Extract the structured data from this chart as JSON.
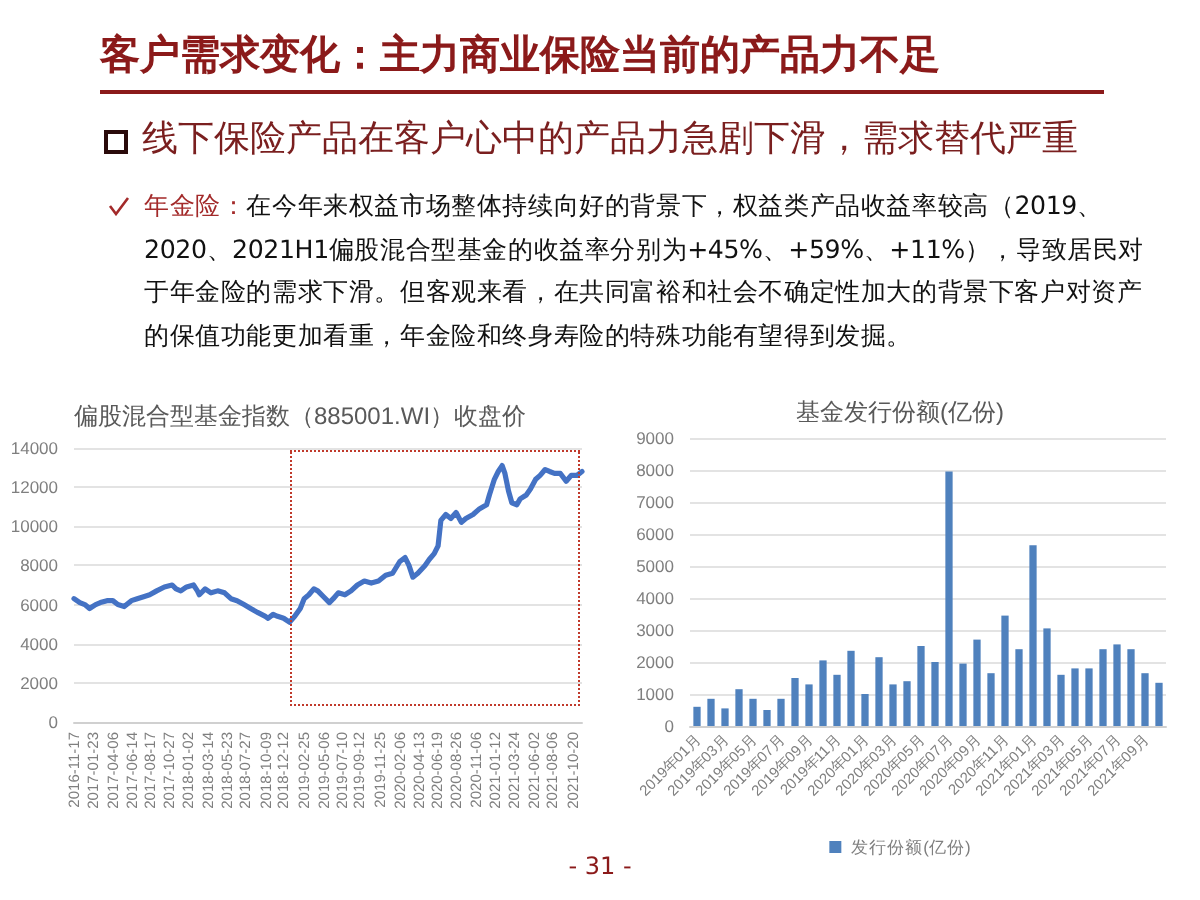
{
  "chart_data": [
    {
      "type": "other",
      "title": "客户需求变化：主力商业保险当前的产品力不足",
      "subtitle": "线下保险产品在客户心中的产品力急剧下滑，需求替代严重",
      "annotations": [
        "年金险：",
        "在今年来权益市场整体持续向好的背景下，权益类产品收益率较高（2019、2020、2021H1偏股混合型基金的收益率分别为+45%、+59%、+11%），导致居民对于年金险的需求下滑。但客观来看，在共同富裕和社会不确定性加大的背景下客户对资产的保值功能更加看重，年金险和终身寿险的特殊功能有望得到发掘。",
        "- 31 -"
      ]
    },
    {
      "type": "line",
      "title": "偏股混合型基金指数（885001.WI）收盘价",
      "x": [
        "2016-11-17",
        "2016-12-08",
        "2016-12-26",
        "2017-01-12",
        "2017-02-03",
        "2017-02-20",
        "2017-03-16",
        "2017-04-06",
        "2017-04-24",
        "2017-05-17",
        "2017-06-12",
        "2017-07-03",
        "2017-07-26",
        "2017-08-17",
        "2017-09-11",
        "2017-10-09",
        "2017-11-06",
        "2017-11-20",
        "2017-12-07",
        "2017-12-28",
        "2018-01-22",
        "2018-02-05",
        "2018-02-12",
        "2018-03-05",
        "2018-03-26",
        "2018-04-19",
        "2018-05-14",
        "2018-06-06",
        "2018-06-28",
        "2018-07-23",
        "2018-08-16",
        "2018-09-10",
        "2018-10-08",
        "2018-10-18",
        "2018-11-05",
        "2018-11-21",
        "2018-12-13",
        "2019-01-03",
        "2019-01-22",
        "2019-02-11",
        "2019-02-25",
        "2019-03-14",
        "2019-04-01",
        "2019-04-15",
        "2019-05-06",
        "2019-05-27",
        "2019-06-10",
        "2019-06-28",
        "2019-07-22",
        "2019-08-13",
        "2019-09-05",
        "2019-09-30",
        "2019-10-25",
        "2019-11-20",
        "2019-12-16",
        "2020-01-10",
        "2020-02-05",
        "2020-02-24",
        "2020-03-09",
        "2020-03-23",
        "2020-04-10",
        "2020-05-06",
        "2020-05-21",
        "2020-06-08",
        "2020-06-22",
        "2020-07-02",
        "2020-07-20",
        "2020-08-07",
        "2020-08-26",
        "2020-09-14",
        "2020-09-30",
        "2020-10-26",
        "2020-11-19",
        "2020-12-14",
        "2020-12-24",
        "2021-01-11",
        "2021-01-25",
        "2021-02-08",
        "2021-02-18",
        "2021-03-03",
        "2021-03-15",
        "2021-04-02",
        "2021-04-14",
        "2021-05-06",
        "2021-05-21",
        "2021-06-09",
        "2021-06-25",
        "2021-07-13",
        "2021-07-29",
        "2021-08-16",
        "2021-09-06",
        "2021-09-27",
        "2021-10-15",
        "2021-11-05",
        "2021-11-23"
      ],
      "series": [
        {
          "color": "#4472c4",
          "values": [
            6300,
            6100,
            6000,
            5800,
            6000,
            6100,
            6200,
            6200,
            6000,
            5900,
            6200,
            6300,
            6400,
            6500,
            6700,
            6900,
            7000,
            6800,
            6700,
            6900,
            7000,
            6700,
            6500,
            6800,
            6600,
            6700,
            6600,
            6300,
            6200,
            6000,
            5800,
            5600,
            5400,
            5300,
            5500,
            5400,
            5300,
            5100,
            5400,
            5800,
            6300,
            6500,
            6800,
            6700,
            6400,
            6100,
            6300,
            6600,
            6500,
            6700,
            7000,
            7200,
            7100,
            7200,
            7500,
            7600,
            8200,
            8400,
            8000,
            7400,
            7600,
            8000,
            8300,
            8600,
            9000,
            10300,
            10600,
            10400,
            10700,
            10200,
            10400,
            10600,
            10900,
            11100,
            11600,
            12400,
            12800,
            13100,
            12700,
            11800,
            11200,
            11100,
            11400,
            11600,
            11900,
            12400,
            12600,
            12900,
            12800,
            12700,
            12700,
            12300,
            12600,
            12600,
            12800
          ]
        }
      ],
      "xlim": [
        "2016-11-17",
        "2021-11-23"
      ],
      "xticks": [
        "2016-11-17",
        "2017-01-23",
        "2017-04-06",
        "2017-06-14",
        "2017-08-17",
        "2017-10-27",
        "2018-01-02",
        "2018-03-14",
        "2018-05-23",
        "2018-07-27",
        "2018-10-09",
        "2018-12-12",
        "2019-02-25",
        "2019-05-06",
        "2019-07-10",
        "2019-09-12",
        "2019-11-25",
        "2020-02-06",
        "2020-04-13",
        "2020-06-19",
        "2020-08-26",
        "2020-11-06",
        "2021-01-12",
        "2021-03-24",
        "2021-06-02",
        "2021-08-06",
        "2021-10-20"
      ],
      "ylim": [
        0,
        14000
      ],
      "yticks": [
        0,
        2000,
        4000,
        6000,
        8000,
        10000,
        12000,
        14000
      ],
      "grid": "y"
    },
    {
      "type": "bar",
      "title": "基金发行份额(亿份)",
      "categories": [
        "2019年01月",
        null,
        "2019年03月",
        null,
        "2019年05月",
        null,
        "2019年07月",
        null,
        "2019年09月",
        null,
        "2019年11月",
        null,
        "2020年01月",
        null,
        "2020年03月",
        null,
        "2020年05月",
        null,
        "2020年07月",
        null,
        "2020年09月",
        null,
        "2020年11月",
        null,
        "2021年01月",
        null,
        "2021年03月",
        null,
        "2021年05月",
        null,
        "2021年07月",
        null,
        "2021年09月",
        null
      ],
      "series": [
        {
          "name": "发行份额(亿份)",
          "color": "#4f81bd",
          "values": [
            600,
            850,
            550,
            1150,
            850,
            500,
            850,
            1500,
            1300,
            2050,
            1600,
            2350,
            1000,
            2150,
            1300,
            1400,
            2500,
            2000,
            7950,
            1950,
            2700,
            1650,
            3450,
            2400,
            5650,
            3050,
            1600,
            1800,
            1800,
            2400,
            2550,
            2400,
            1650,
            1350
          ]
        }
      ],
      "ylim": [
        0,
        9000
      ],
      "yticks": [
        0,
        1000,
        2000,
        3000,
        4000,
        5000,
        6000,
        7000,
        8000,
        9000
      ],
      "grid": "y",
      "legend": "bottom"
    }
  ]
}
